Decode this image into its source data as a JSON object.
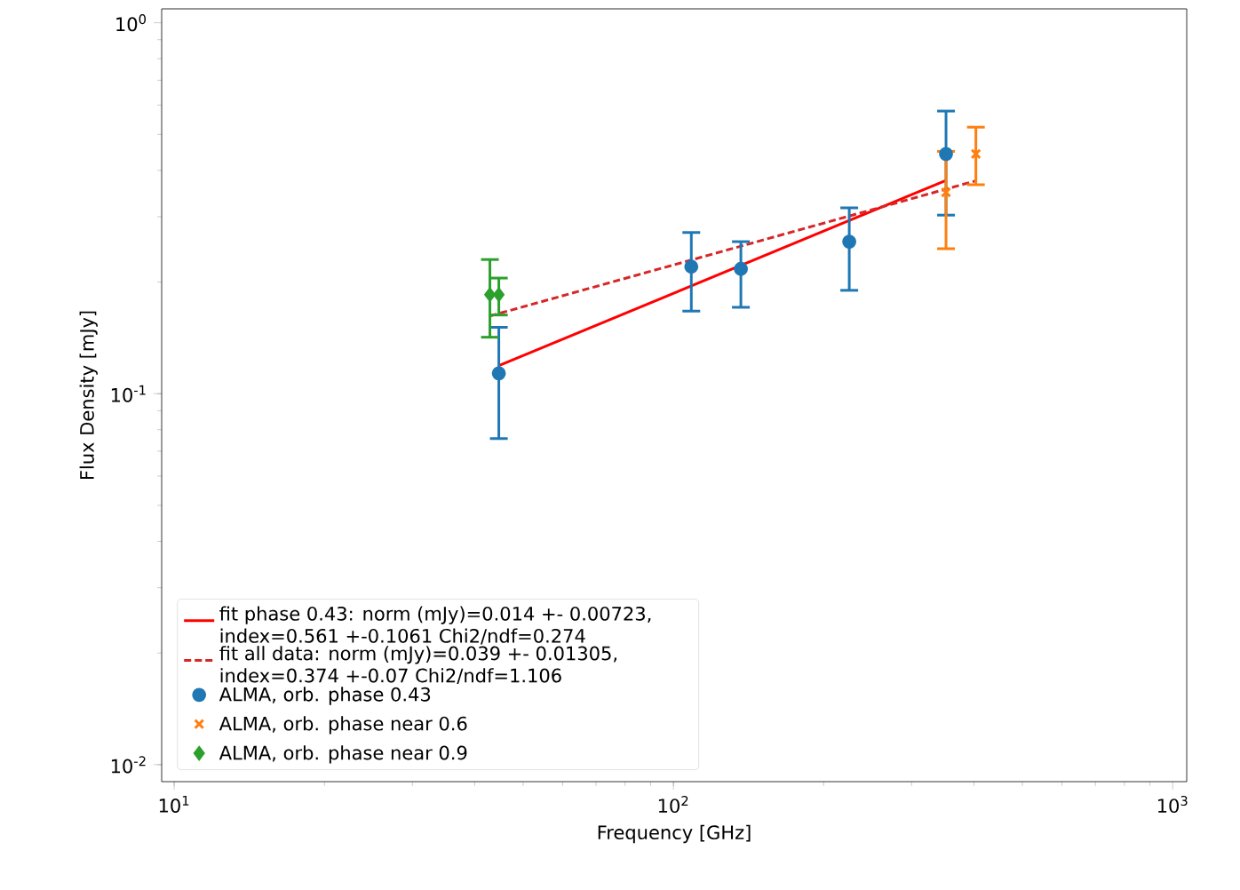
{
  "chart_data": {
    "type": "scatter",
    "xlabel": "Frequency [GHz]",
    "ylabel": "Flux Density [mJy]",
    "log": "xy",
    "grid": false,
    "legend": "bottom left",
    "xlim": [
      9.44,
      1067
    ],
    "ylim": [
      0.009,
      1.09
    ],
    "xticks": [
      {
        "value": 10,
        "label": "10$^{1}$"
      },
      {
        "value": 100,
        "label": "10$^{2}$"
      },
      {
        "value": 1000,
        "label": "10$^{3}$"
      }
    ],
    "yticks": [
      {
        "value": 0.01,
        "label": "10$^{-2}$"
      },
      {
        "value": 0.1,
        "label": "10$^{-1}$"
      },
      {
        "value": 1,
        "label": "10$^{0}$"
      }
    ],
    "series": [
      {
        "name": "fit phase 0.43: norm (mJy)=0.014 +- 0.00723, index=0.561 +-0.1061 Chi2/ndf=0.274",
        "type": "line",
        "color": "#ff0000",
        "line_style": "solid",
        "x": [
          44.7,
          351.6
        ],
        "values": [
          0.119,
          0.376
        ]
      },
      {
        "name": "fit all data: norm (mJy)=0.039 +- 0.01305, index=0.374 +-0.07 Chi2/ndf=1.106",
        "type": "line",
        "color": "#d62728",
        "line_style": "dashed",
        "x": [
          42.9,
          403.5
        ],
        "values": [
          0.162,
          0.375
        ]
      },
      {
        "name": "ALMA, orb. phase 0.43",
        "type": "scatter",
        "color": "#1f77b4",
        "marker": "circle",
        "x": [
          44.7,
          108.6,
          136.5,
          225,
          351.6
        ],
        "values": [
          0.1135,
          0.22,
          0.217,
          0.257,
          0.443
        ],
        "errors": [
          [
            0.0757,
            0.151
          ],
          [
            0.167,
            0.272
          ],
          [
            0.171,
            0.257
          ],
          [
            0.19,
            0.317
          ],
          [
            0.303,
            0.578
          ]
        ]
      },
      {
        "name": "ALMA, orb. phase near 0.6",
        "type": "scatter",
        "color": "#ff7f0e",
        "marker": "cross",
        "x": [
          351.6,
          403.5
        ],
        "values": [
          0.349,
          0.443
        ],
        "errors": [
          [
            0.246,
            0.45
          ],
          [
            0.366,
            0.523
          ]
        ]
      },
      {
        "name": "ALMA, orb. phase near 0.9",
        "type": "scatter",
        "color": "#2ca02c",
        "marker": "diamond",
        "x": [
          42.9,
          44.7
        ],
        "values": [
          0.185,
          0.185
        ],
        "errors": [
          [
            0.142,
            0.23
          ],
          [
            0.163,
            0.205
          ]
        ]
      }
    ]
  }
}
